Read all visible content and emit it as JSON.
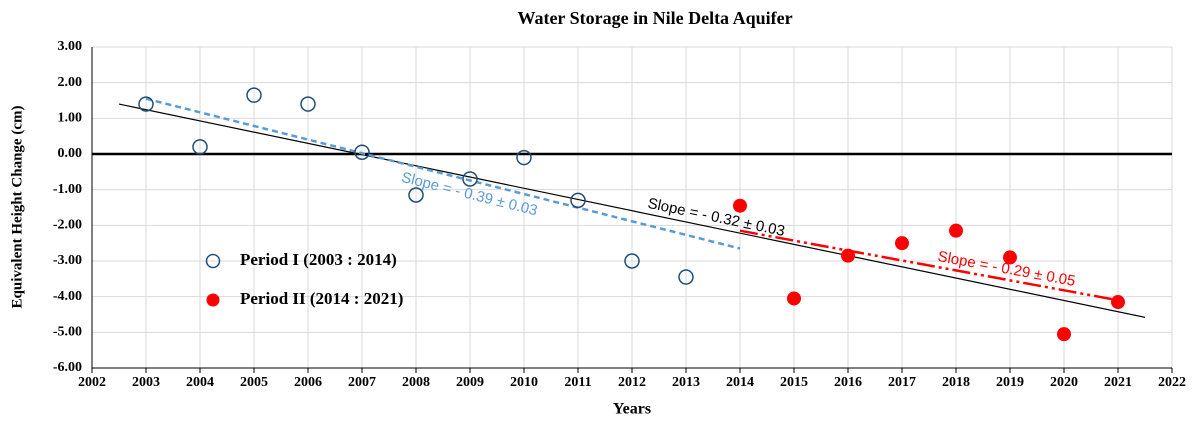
{
  "chart_data": {
    "type": "scatter",
    "title": "Water Storage in Nile Delta Aquifer",
    "xlabel": "Years",
    "ylabel": "Equivalent Height Change (cm)",
    "xlim": [
      2002,
      2022
    ],
    "xticks": [
      2002,
      2003,
      2004,
      2005,
      2006,
      2007,
      2008,
      2009,
      2010,
      2011,
      2012,
      2013,
      2014,
      2015,
      2016,
      2017,
      2018,
      2019,
      2020,
      2021,
      2022
    ],
    "ylim": [
      -6,
      3
    ],
    "yticks": [
      {
        "value": -6,
        "label": "-6.00"
      },
      {
        "value": -5,
        "label": "-5.00"
      },
      {
        "value": -4,
        "label": "-4.00"
      },
      {
        "value": -3,
        "label": "-3.00"
      },
      {
        "value": -2,
        "label": "-2.00"
      },
      {
        "value": -1,
        "label": "-1.00"
      },
      {
        "value": 0,
        "label": "0.00"
      },
      {
        "value": 1,
        "label": "1.00"
      },
      {
        "value": 2,
        "label": "2.00"
      },
      {
        "value": 3,
        "label": "3.00"
      }
    ],
    "grid": true,
    "legend": "left",
    "series": [
      {
        "name": "Period I (2003 : 2014)",
        "color": "#1f4e79",
        "marker": "open",
        "x": [
          2003,
          2004,
          2005,
          2006,
          2007,
          2008,
          2009,
          2010,
          2011,
          2012,
          2013
        ],
        "values": [
          1.4,
          0.2,
          1.65,
          1.4,
          0.05,
          -1.15,
          -0.7,
          -0.1,
          -1.3,
          -3.0,
          -3.45
        ]
      },
      {
        "name": "Period II (2014 : 2021)",
        "color": "#ff0000",
        "marker": "filled",
        "x": [
          2014,
          2015,
          2016,
          2017,
          2018,
          2019,
          2020,
          2021
        ],
        "values": [
          -1.45,
          -4.05,
          -2.85,
          -2.5,
          -2.15,
          -2.9,
          -5.05,
          -4.15
        ]
      }
    ],
    "trendlines": [
      {
        "label": "Slope = - 0.32 ± 0.03",
        "color": "#000000",
        "dash": "solid",
        "x": [
          2002.5,
          2021.5
        ],
        "values": [
          1.4,
          -4.58
        ]
      },
      {
        "label": "Slope = - 0.39 ± 0.03",
        "color": "#5b9bd5",
        "dash": "dashed",
        "x": [
          2003,
          2014
        ],
        "values": [
          1.55,
          -2.65
        ]
      },
      {
        "label": "Slope = - 0.29 ± 0.05",
        "color": "#ff0000",
        "dash": "dashdot",
        "x": [
          2014,
          2021
        ],
        "values": [
          -2.15,
          -4.1
        ]
      }
    ]
  }
}
